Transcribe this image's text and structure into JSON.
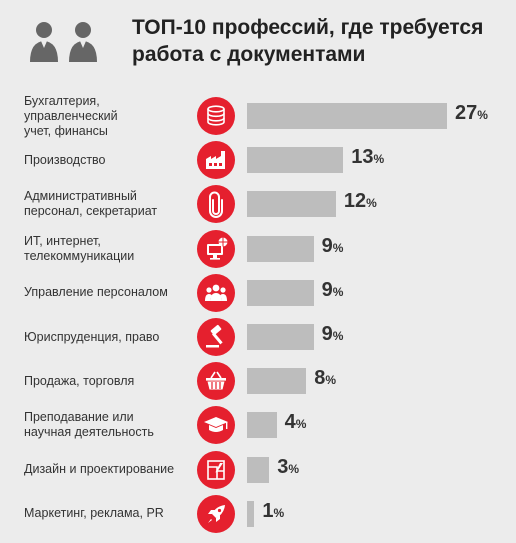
{
  "title": {
    "line1": "ТОП-10 профессий, где требуется",
    "line2": "работа с документами"
  },
  "colors": {
    "icon": "#e5202e",
    "bar": "#bdbdbd",
    "background": "#ececec"
  },
  "header_icon": "two-people-icon",
  "chart_data": {
    "type": "bar",
    "orientation": "horizontal",
    "unit": "%",
    "categories": [
      "Бухгалтерия, управленческий учет, финансы",
      "Производство",
      "Административный персонал, секретариат",
      "ИТ, интернет, телекоммуникации",
      "Управление персоналом",
      "Юриспруденция, право",
      "Продажа, торговля",
      "Преподавание или научная деятельность",
      "Дизайн и проектирование",
      "Маркетинг, реклама, PR"
    ],
    "values": [
      27,
      13,
      12,
      9,
      9,
      9,
      8,
      4,
      3,
      1
    ],
    "xlim": [
      0,
      27
    ],
    "grid": false,
    "legend": "none"
  },
  "rows": [
    {
      "label_lines": [
        "Бухгалтерия, управленческий",
        "учет, финансы"
      ],
      "value": "27",
      "pct": "%",
      "icon": "coins-icon"
    },
    {
      "label_lines": [
        "Производство"
      ],
      "value": "13",
      "pct": "%",
      "icon": "factory-icon"
    },
    {
      "label_lines": [
        "Административный",
        "персонал, секретариат"
      ],
      "value": "12",
      "pct": "%",
      "icon": "paperclip-icon"
    },
    {
      "label_lines": [
        "ИТ, интернет,",
        "телекоммуникации"
      ],
      "value": "9",
      "pct": "%",
      "icon": "computer-network-icon"
    },
    {
      "label_lines": [
        "Управление персоналом"
      ],
      "value": "9",
      "pct": "%",
      "icon": "people-group-icon"
    },
    {
      "label_lines": [
        "Юриспруденция, право"
      ],
      "value": "9",
      "pct": "%",
      "icon": "gavel-icon"
    },
    {
      "label_lines": [
        "Продажа, торговля"
      ],
      "value": "8",
      "pct": "%",
      "icon": "shopping-basket-icon"
    },
    {
      "label_lines": [
        "Преподавание или",
        "научная деятельность"
      ],
      "value": "4",
      "pct": "%",
      "icon": "graduation-cap-icon"
    },
    {
      "label_lines": [
        "Дизайн и проектирование"
      ],
      "value": "3",
      "pct": "%",
      "icon": "blueprint-icon"
    },
    {
      "label_lines": [
        "Маркетинг, реклама, PR"
      ],
      "value": "1",
      "pct": "%",
      "icon": "rocket-icon"
    }
  ]
}
